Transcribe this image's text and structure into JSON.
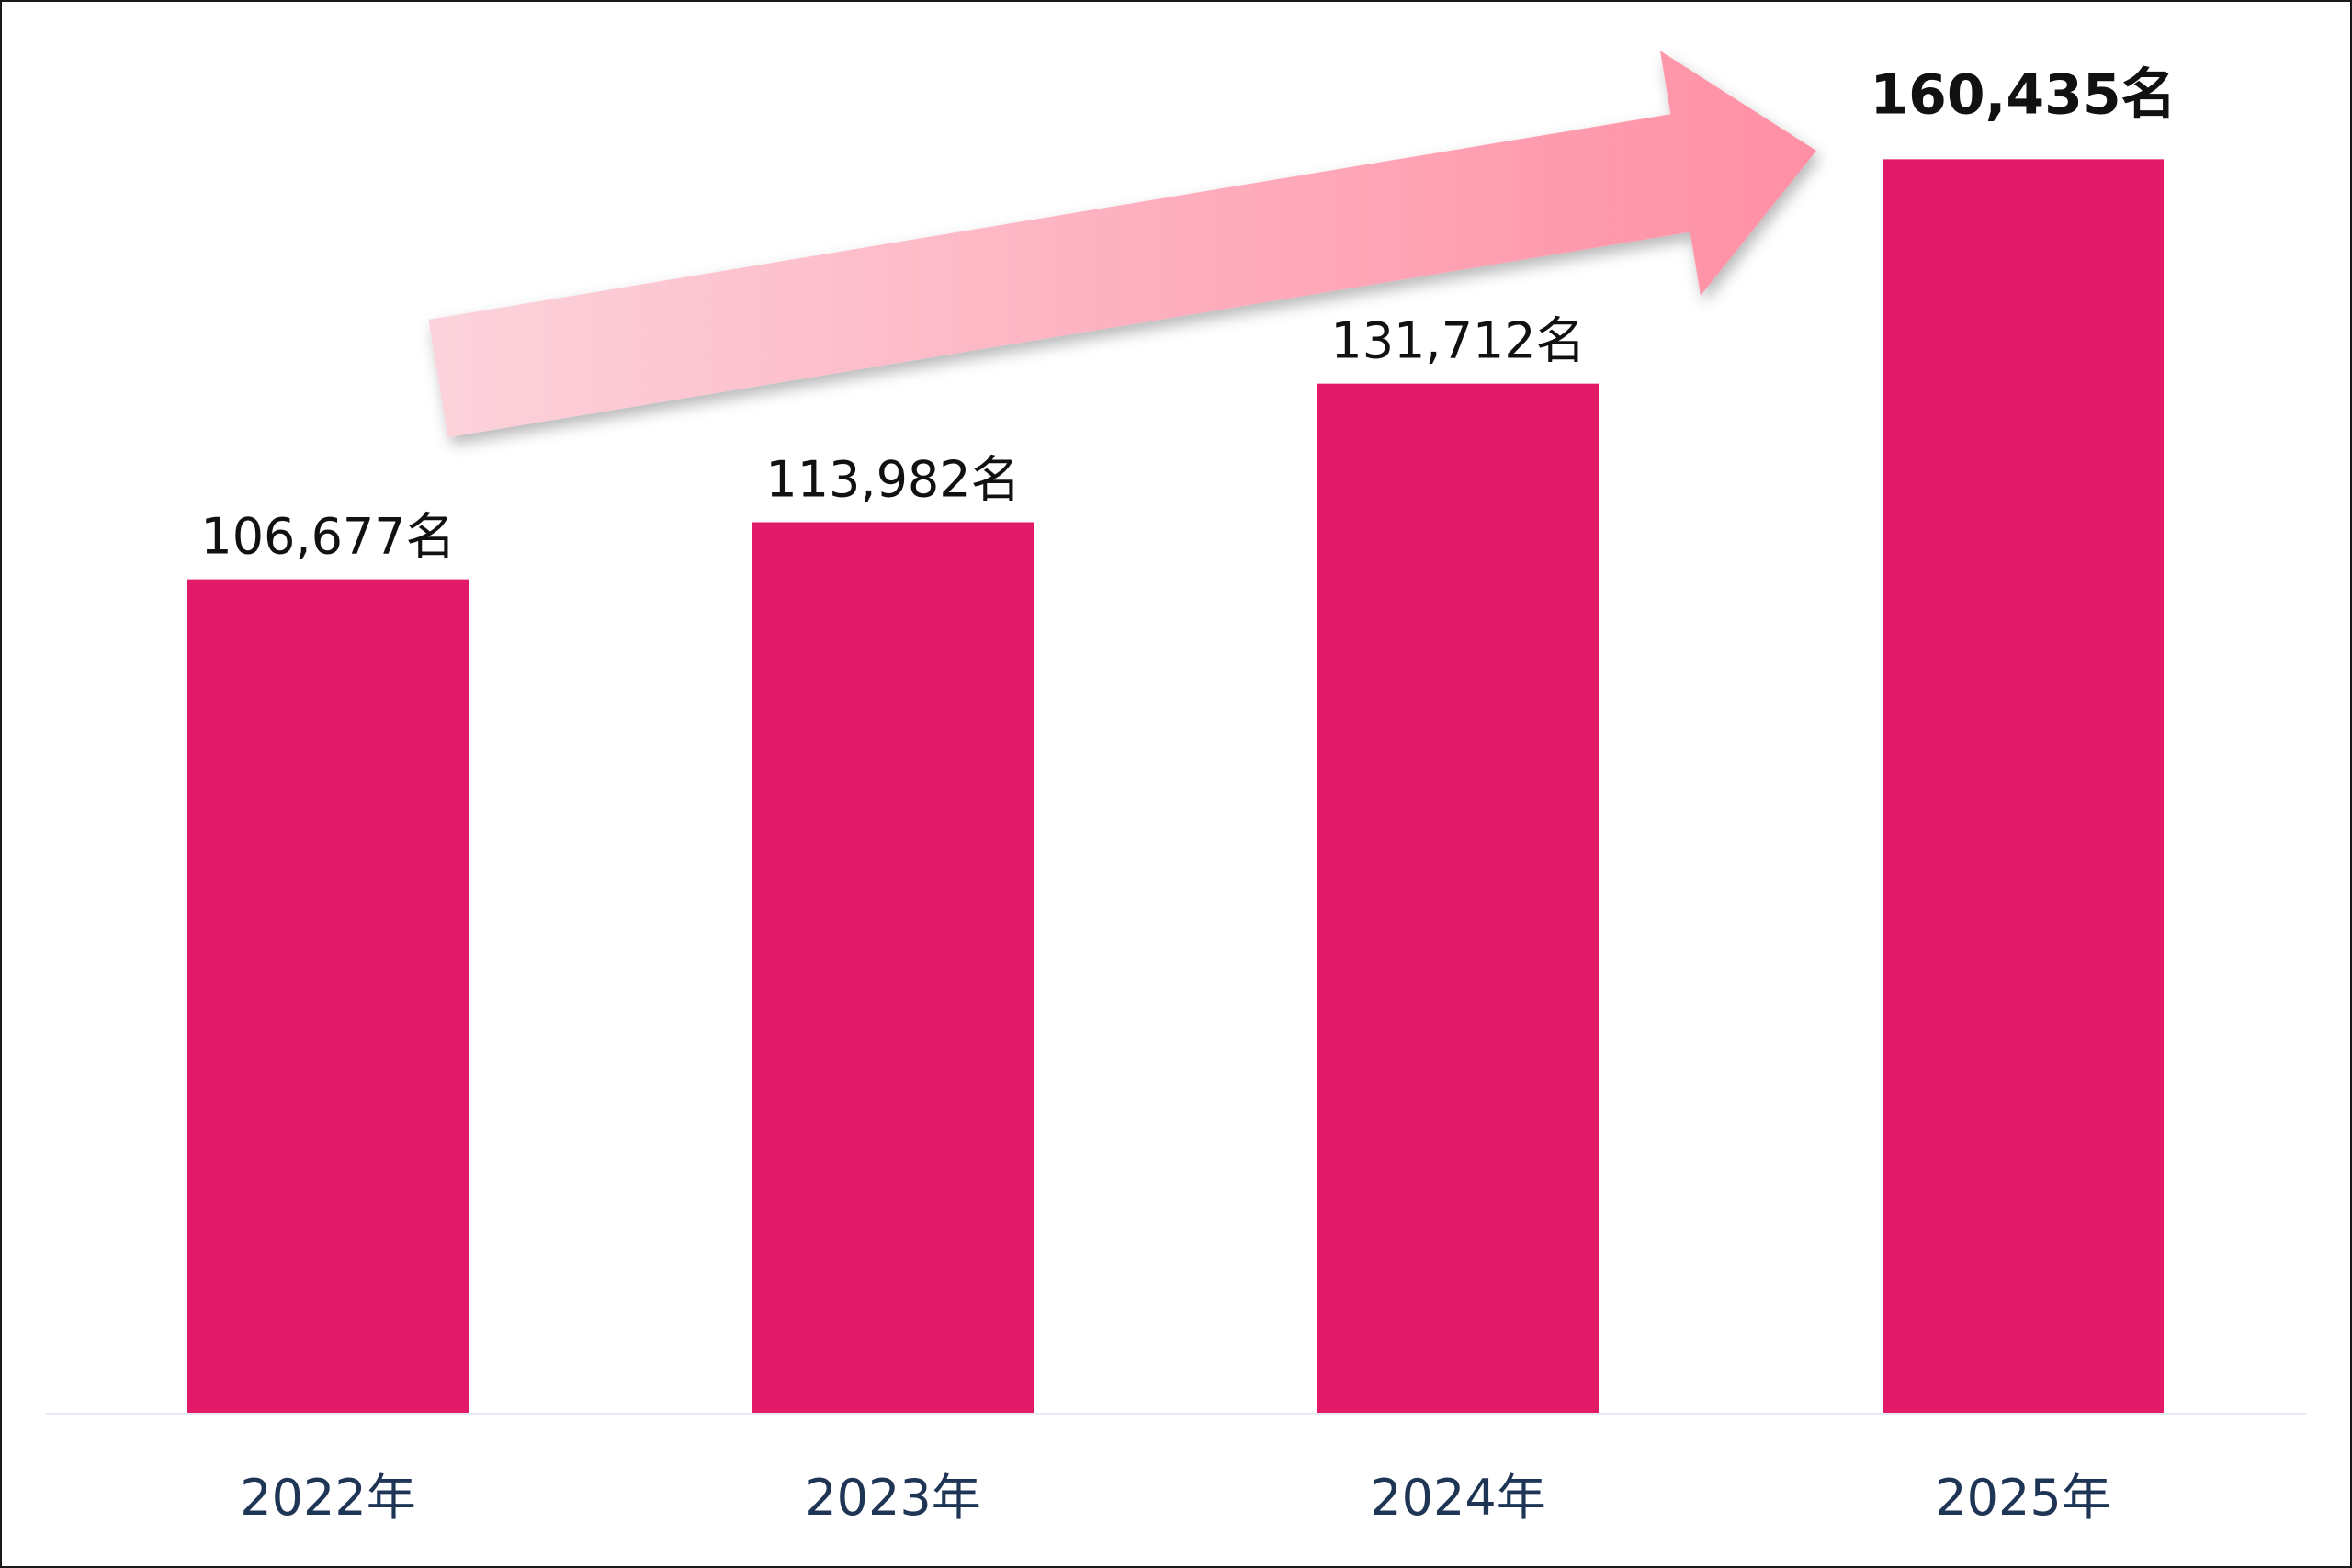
{
  "chart_data": {
    "type": "bar",
    "categories": [
      "2022年",
      "2023年",
      "2024年",
      "2025年"
    ],
    "values": [
      106677,
      113982,
      131712,
      160435
    ],
    "value_labels": [
      "106,677名",
      "113,982名",
      "131,712名",
      "160,435名"
    ],
    "emphasized_index": 3,
    "ylim": [
      0,
      170000
    ],
    "grid": false,
    "legend": "none",
    "trend_arrow": true,
    "colors": {
      "bar": "#e21a68",
      "arrow_start": "#fcd3dc",
      "arrow_end": "#ff8fa4",
      "category_text": "#1f3556",
      "value_text": "#111111",
      "baseline": "#e6ebf3"
    }
  }
}
